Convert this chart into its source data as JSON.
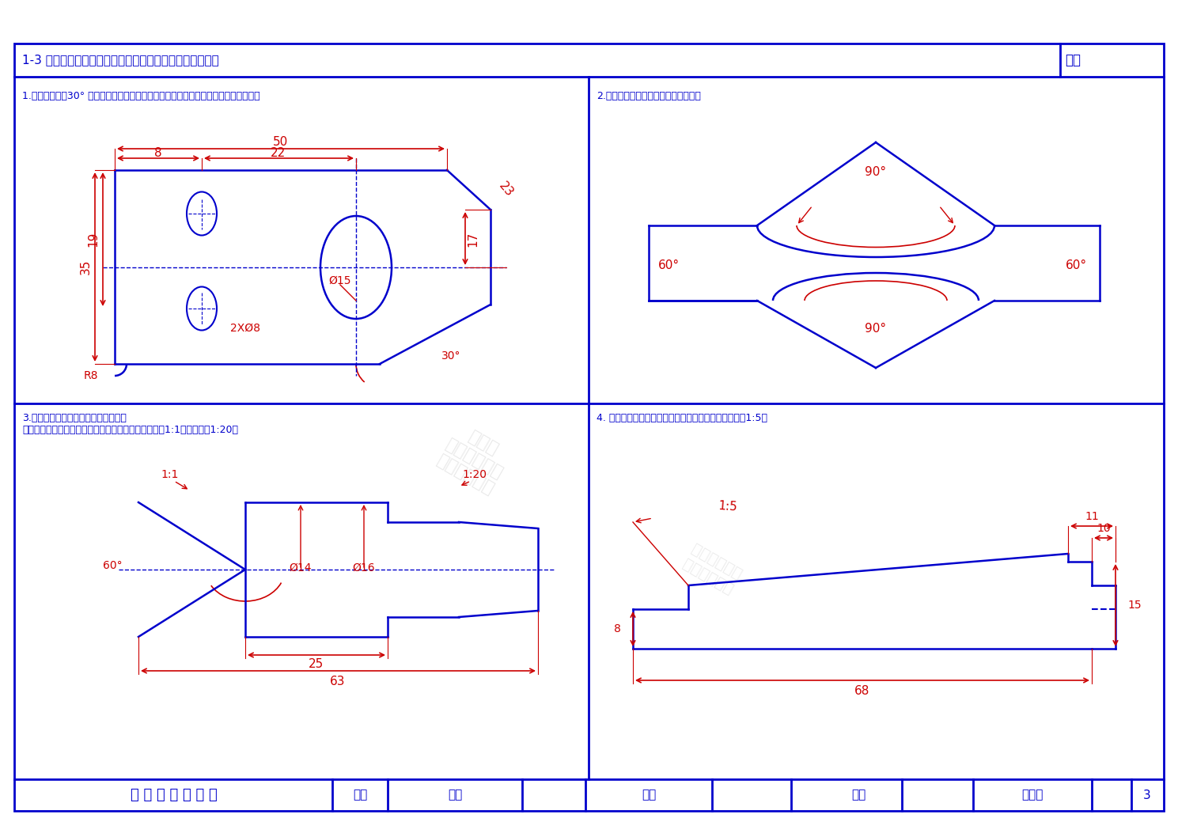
{
  "bg_color": "#ffffff",
  "border_color": "#0000cc",
  "dim_color": "#cc0000",
  "draw_color": "#0000cc",
  "title_text": "1-3 正确标注下列图中尺寸（尺寸大小在图中量取整数）。",
  "score_text": "成绩",
  "footer_title": "机 械 制 图 习 题 集",
  "footer_items": [
    "班级",
    "学号",
    "姓名",
    "审阅",
    "仝基斌",
    "3"
  ],
  "q1_title": "1.（提示：注意30° 方向的尺寸标注、两个相同孔直径的标注和角度数字的正确书写）",
  "q2_title": "2.（提示：注意角度数字的正确书写）",
  "q3_title": "3.顶尖（由回转体同轴叠加）尺寸标注\n（提示：注意锥度、角度和直径的正确标注，左端锥度1:1，右端锥度1:20）",
  "q4_title": "4. 棱形键尺寸标注（提示：注意斜度的正确标注，斜度1:5）"
}
